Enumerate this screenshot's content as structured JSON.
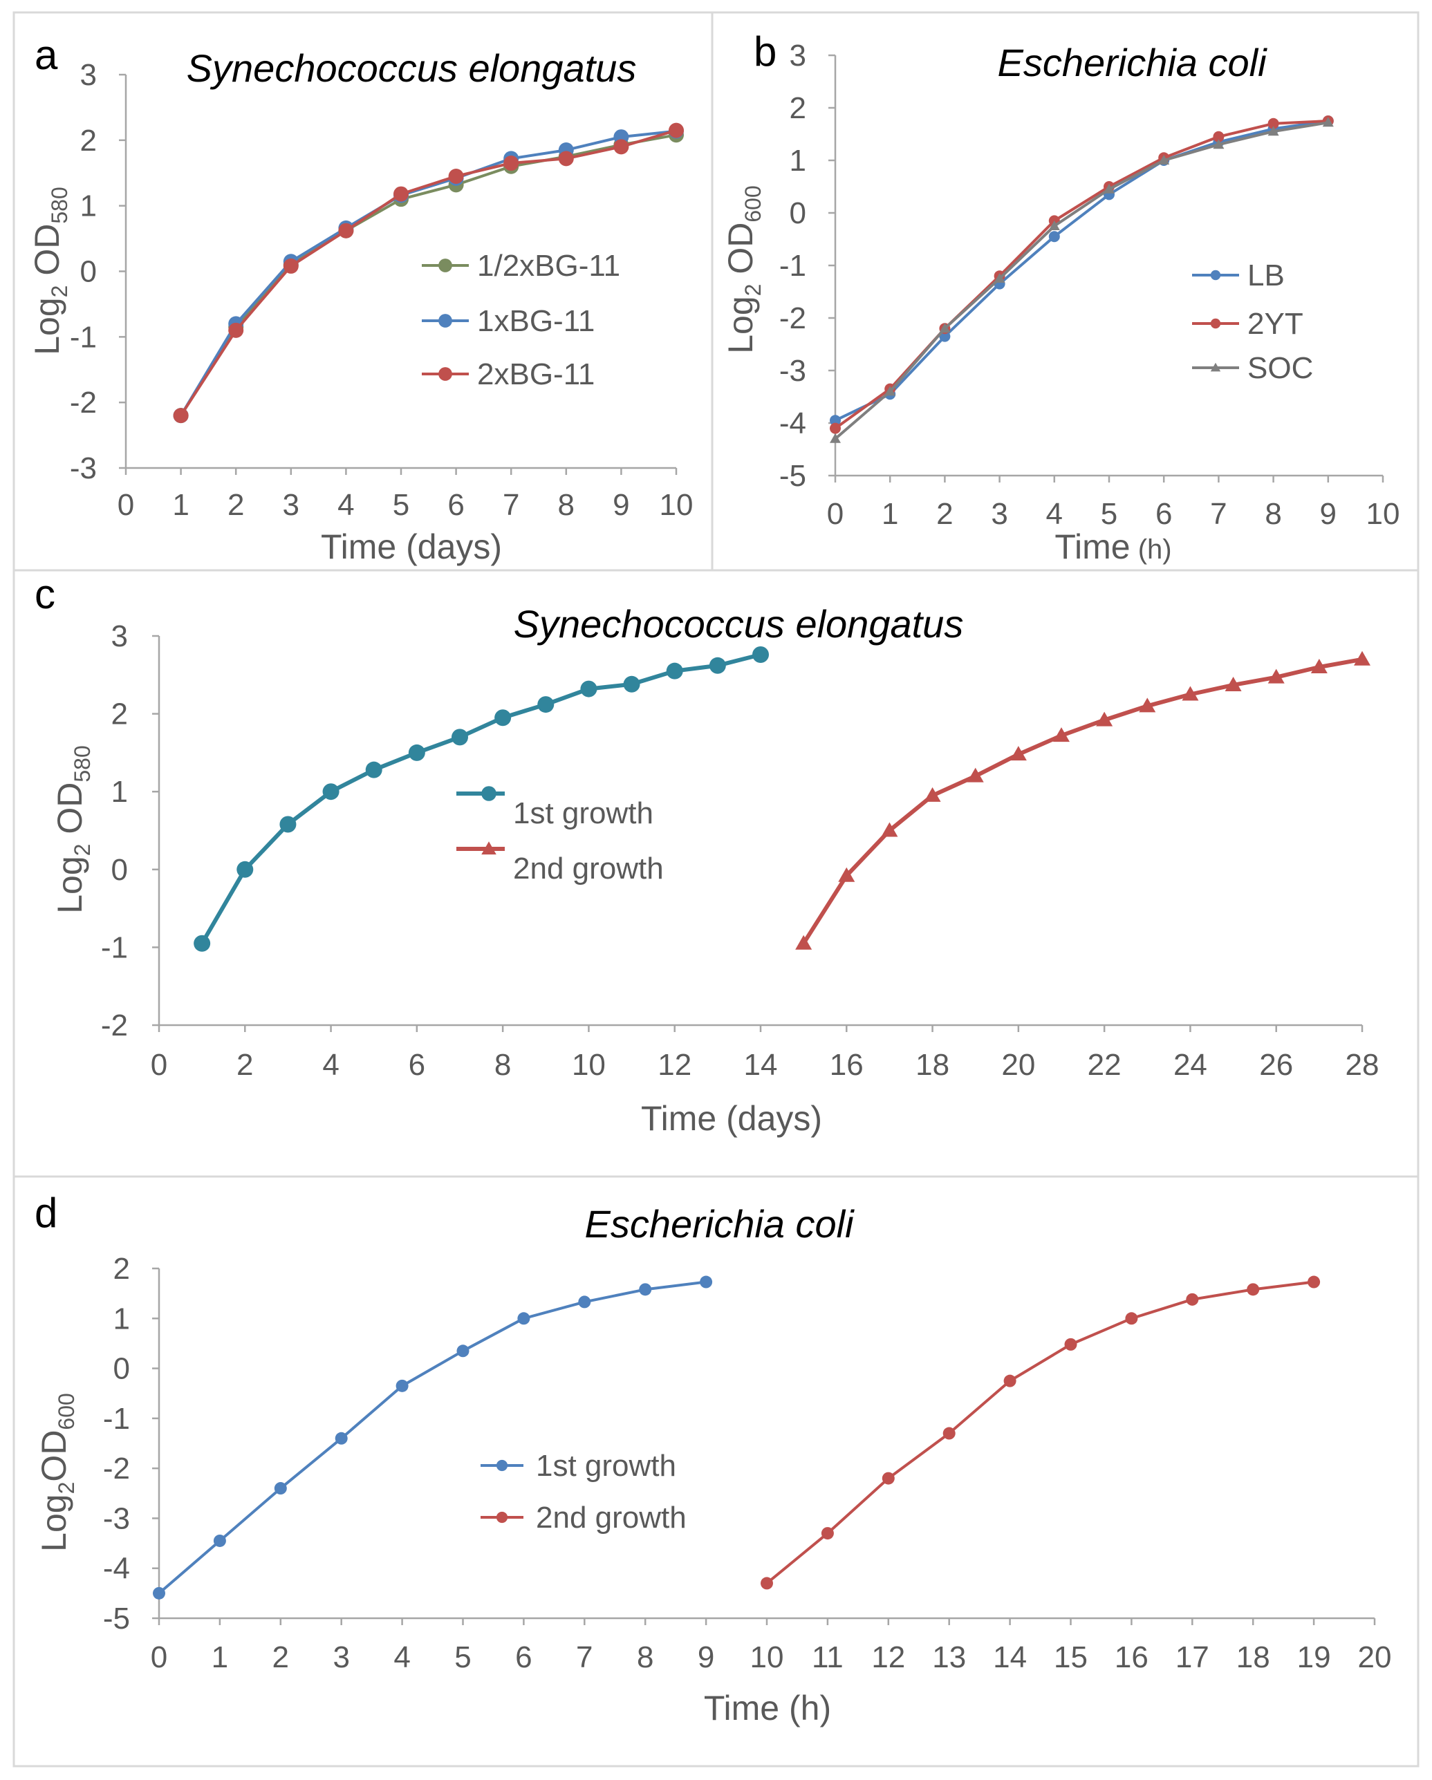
{
  "colors": {
    "green": "#7a8c5f",
    "blue": "#4f81bd",
    "red": "#c0504d",
    "gray": "#7f7f7f",
    "teal": "#31859c",
    "axis": "#a6a6a6",
    "text": "#595959"
  },
  "chart_data": [
    {
      "id": "a",
      "type": "line",
      "letter": "a",
      "title": "Synechococcus elongatus",
      "xlabel": "Time (days)",
      "ylabel_main": "Log",
      "ylabel_sub": "2",
      "ylabel_main2": " OD",
      "ylabel_sub2": "580",
      "xlim": [
        0,
        10
      ],
      "ylim": [
        -3,
        3
      ],
      "x_ticks": [
        "0",
        "1",
        "2",
        "3",
        "4",
        "5",
        "6",
        "7",
        "8",
        "9",
        "10"
      ],
      "y_ticks": [
        "-3",
        "-2",
        "-1",
        "0",
        "1",
        "2",
        "3"
      ],
      "series": [
        {
          "name": "1/2xBG-11",
          "color": "#7a8c5f",
          "marker": "circle",
          "x": [
            1,
            2,
            3,
            4,
            5,
            6,
            7,
            8,
            9,
            10
          ],
          "y": [
            -2.2,
            -0.85,
            0.1,
            0.62,
            1.1,
            1.32,
            1.6,
            1.75,
            1.93,
            2.08
          ]
        },
        {
          "name": "1xBG-11",
          "color": "#4f81bd",
          "marker": "circle",
          "x": [
            1,
            2,
            3,
            4,
            5,
            6,
            7,
            8,
            9,
            10
          ],
          "y": [
            -2.2,
            -0.8,
            0.15,
            0.66,
            1.16,
            1.42,
            1.72,
            1.85,
            2.05,
            2.14
          ]
        },
        {
          "name": "2xBG-11",
          "color": "#c0504d",
          "marker": "circle",
          "x": [
            1,
            2,
            3,
            4,
            5,
            6,
            7,
            8,
            9,
            10
          ],
          "y": [
            -2.2,
            -0.9,
            0.08,
            0.62,
            1.18,
            1.45,
            1.65,
            1.72,
            1.9,
            2.15
          ]
        }
      ]
    },
    {
      "id": "b",
      "type": "line",
      "letter": "b",
      "title": "Escherichia coli",
      "xlabel": "Time",
      "xlabel_unit": "(h)",
      "ylabel_main": "Log",
      "ylabel_sub": "2",
      "ylabel_main2": " OD",
      "ylabel_sub2": "600",
      "xlim": [
        0,
        10
      ],
      "ylim": [
        -5,
        3
      ],
      "x_ticks": [
        "0",
        "1",
        "2",
        "3",
        "4",
        "5",
        "6",
        "7",
        "8",
        "9",
        "10"
      ],
      "y_ticks": [
        "-5",
        "-4",
        "-3",
        "-2",
        "-1",
        "0",
        "1",
        "2",
        "3"
      ],
      "series": [
        {
          "name": "LB",
          "color": "#4f81bd",
          "marker": "circle",
          "x": [
            0,
            1,
            2,
            3,
            4,
            5,
            6,
            7,
            8,
            9
          ],
          "y": [
            -3.95,
            -3.45,
            -2.35,
            -1.35,
            -0.45,
            0.35,
            1.0,
            1.35,
            1.6,
            1.75
          ]
        },
        {
          "name": "2YT",
          "color": "#c0504d",
          "marker": "circle",
          "x": [
            0,
            1,
            2,
            3,
            4,
            5,
            6,
            7,
            8,
            9
          ],
          "y": [
            -4.1,
            -3.35,
            -2.2,
            -1.2,
            -0.15,
            0.5,
            1.05,
            1.45,
            1.7,
            1.75
          ]
        },
        {
          "name": "SOC",
          "color": "#7f7f7f",
          "marker": "triangle",
          "x": [
            0,
            1,
            2,
            3,
            4,
            5,
            6,
            7,
            8,
            9
          ],
          "y": [
            -4.3,
            -3.4,
            -2.2,
            -1.25,
            -0.25,
            0.45,
            1.0,
            1.3,
            1.55,
            1.72
          ]
        }
      ]
    },
    {
      "id": "c",
      "type": "line",
      "letter": "c",
      "title": "Synechococcus elongatus",
      "xlabel": "Time (days)",
      "ylabel_main": "Log",
      "ylabel_sub": "2",
      "ylabel_main2": " OD",
      "ylabel_sub2": "580",
      "xlim": [
        0,
        28
      ],
      "ylim": [
        -2,
        3
      ],
      "x_ticks": [
        "0",
        "2",
        "4",
        "6",
        "8",
        "10",
        "12",
        "14",
        "16",
        "18",
        "20",
        "22",
        "24",
        "26",
        "28"
      ],
      "y_ticks": [
        "-2",
        "-1",
        "0",
        "1",
        "2",
        "3"
      ],
      "series": [
        {
          "name": "1st growth",
          "color": "#31859c",
          "marker": "circle",
          "x": [
            1,
            2,
            3,
            4,
            5,
            6,
            7,
            8,
            9,
            10,
            11,
            12,
            13,
            14
          ],
          "y": [
            -0.95,
            0.0,
            0.58,
            1.0,
            1.28,
            1.5,
            1.7,
            1.95,
            2.12,
            2.32,
            2.38,
            2.55,
            2.62,
            2.76
          ]
        },
        {
          "name": "2nd growth",
          "color": "#c0504d",
          "marker": "triangle",
          "x": [
            15,
            16,
            17,
            18,
            19,
            20,
            21,
            22,
            23,
            24,
            25,
            26,
            27,
            28
          ],
          "y": [
            -0.95,
            -0.08,
            0.5,
            0.95,
            1.2,
            1.48,
            1.72,
            1.92,
            2.1,
            2.25,
            2.37,
            2.47,
            2.6,
            2.7
          ]
        }
      ]
    },
    {
      "id": "d",
      "type": "line",
      "letter": "d",
      "title": "Escherichia coli",
      "xlabel": "Time (h)",
      "ylabel_main": "Log",
      "ylabel_sub": "2",
      "ylabel_main2": "OD",
      "ylabel_sub2": "600",
      "xlim": [
        0,
        20
      ],
      "ylim": [
        -5,
        2
      ],
      "x_ticks": [
        "0",
        "1",
        "2",
        "3",
        "4",
        "5",
        "6",
        "7",
        "8",
        "9",
        "10",
        "11",
        "12",
        "13",
        "14",
        "15",
        "16",
        "17",
        "18",
        "19",
        "20"
      ],
      "y_ticks": [
        "-5",
        "-4",
        "-3",
        "-2",
        "-1",
        "0",
        "1",
        "2"
      ],
      "series": [
        {
          "name": "1st growth",
          "color": "#4f81bd",
          "marker": "circle",
          "x": [
            0,
            1,
            2,
            3,
            4,
            5,
            6,
            7,
            8,
            9
          ],
          "y": [
            -4.5,
            -3.45,
            -2.4,
            -1.4,
            -0.35,
            0.35,
            1.0,
            1.33,
            1.58,
            1.73
          ]
        },
        {
          "name": "2nd growth",
          "color": "#c0504d",
          "marker": "circle",
          "x": [
            10,
            11,
            12,
            13,
            14,
            15,
            16,
            17,
            18,
            19
          ],
          "y": [
            -4.3,
            -3.3,
            -2.2,
            -1.3,
            -0.25,
            0.48,
            1.0,
            1.38,
            1.58,
            1.73
          ]
        }
      ]
    }
  ]
}
